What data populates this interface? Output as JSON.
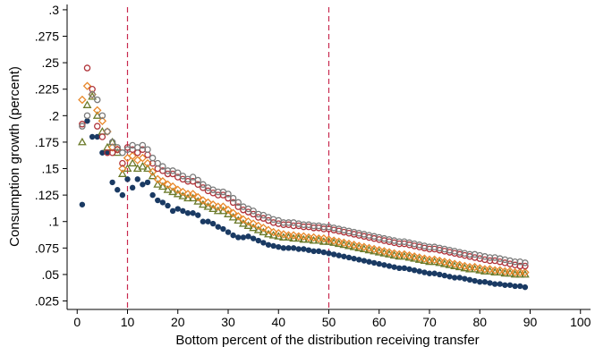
{
  "chart_data": {
    "type": "scatter",
    "title": "",
    "xlabel": "Bottom percent of the distribution receiving transfer",
    "ylabel": "Consumption growth (percent)",
    "xlim": [
      -2,
      102
    ],
    "ylim": [
      0.017,
      0.305
    ],
    "x_ticks": [
      0,
      10,
      20,
      30,
      40,
      50,
      60,
      70,
      80,
      90,
      100
    ],
    "y_ticks": [
      0.025,
      0.05,
      0.075,
      0.1,
      0.125,
      0.15,
      0.175,
      0.2,
      0.225,
      0.25,
      0.275,
      0.3
    ],
    "x_tick_labels": [
      "0",
      "10",
      "20",
      "30",
      "40",
      "50",
      "60",
      "70",
      "80",
      "90",
      "100"
    ],
    "y_tick_labels": [
      ".025",
      ".05",
      ".075",
      ".1",
      ".125",
      ".15",
      ".175",
      ".2",
      ".225",
      ".25",
      ".275",
      ".3"
    ],
    "reference_lines": [
      {
        "axis": "x",
        "value": 10,
        "color": "#c8294f",
        "style": "dashed"
      },
      {
        "axis": "x",
        "value": 50,
        "color": "#c8294f",
        "style": "dashed"
      }
    ],
    "grid": false,
    "legend": "none",
    "x": [
      1,
      2,
      3,
      4,
      5,
      6,
      7,
      8,
      9,
      10,
      11,
      12,
      13,
      14,
      15,
      16,
      17,
      18,
      19,
      20,
      21,
      22,
      23,
      24,
      25,
      26,
      27,
      28,
      29,
      30,
      31,
      32,
      33,
      34,
      35,
      36,
      37,
      38,
      39,
      40,
      41,
      42,
      43,
      44,
      45,
      46,
      47,
      48,
      49,
      50,
      51,
      52,
      53,
      54,
      55,
      56,
      57,
      58,
      59,
      60,
      61,
      62,
      63,
      64,
      65,
      66,
      67,
      68,
      69,
      70,
      71,
      72,
      73,
      74,
      75,
      76,
      77,
      78,
      79,
      80,
      81,
      82,
      83,
      84,
      85,
      86,
      87,
      88,
      89
    ],
    "series": [
      {
        "marker": "hollow-circle",
        "color": "#7a7a7a",
        "values": [
          0.19,
          0.2,
          0.22,
          0.215,
          0.2,
          0.185,
          0.175,
          0.17,
          0.165,
          0.168,
          0.172,
          0.17,
          0.172,
          0.168,
          0.16,
          0.155,
          0.152,
          0.148,
          0.148,
          0.146,
          0.143,
          0.14,
          0.142,
          0.139,
          0.135,
          0.132,
          0.13,
          0.128,
          0.128,
          0.126,
          0.122,
          0.118,
          0.114,
          0.112,
          0.11,
          0.107,
          0.106,
          0.104,
          0.102,
          0.101,
          0.099,
          0.099,
          0.099,
          0.098,
          0.097,
          0.097,
          0.096,
          0.096,
          0.095,
          0.095,
          0.094,
          0.093,
          0.092,
          0.091,
          0.09,
          0.089,
          0.088,
          0.087,
          0.086,
          0.085,
          0.084,
          0.083,
          0.082,
          0.081,
          0.081,
          0.08,
          0.079,
          0.078,
          0.077,
          0.076,
          0.076,
          0.075,
          0.074,
          0.073,
          0.072,
          0.071,
          0.07,
          0.069,
          0.069,
          0.068,
          0.067,
          0.066,
          0.066,
          0.065,
          0.064,
          0.063,
          0.062,
          0.062,
          0.061
        ]
      },
      {
        "marker": "hollow-circle",
        "color": "#b0343a",
        "values": [
          0.192,
          0.245,
          0.225,
          0.19,
          0.18,
          0.165,
          0.165,
          0.168,
          0.155,
          0.17,
          0.168,
          0.165,
          0.168,
          0.163,
          0.155,
          0.15,
          0.148,
          0.145,
          0.145,
          0.142,
          0.14,
          0.138,
          0.138,
          0.135,
          0.132,
          0.129,
          0.127,
          0.125,
          0.125,
          0.122,
          0.118,
          0.114,
          0.111,
          0.109,
          0.107,
          0.104,
          0.103,
          0.101,
          0.099,
          0.098,
          0.097,
          0.097,
          0.096,
          0.096,
          0.095,
          0.095,
          0.094,
          0.094,
          0.093,
          0.093,
          0.092,
          0.091,
          0.09,
          0.089,
          0.088,
          0.087,
          0.086,
          0.085,
          0.084,
          0.083,
          0.082,
          0.081,
          0.08,
          0.079,
          0.079,
          0.078,
          0.077,
          0.076,
          0.075,
          0.074,
          0.074,
          0.073,
          0.072,
          0.071,
          0.07,
          0.069,
          0.068,
          0.067,
          0.066,
          0.065,
          0.064,
          0.063,
          0.063,
          0.062,
          0.061,
          0.06,
          0.059,
          0.058,
          0.058
        ]
      },
      {
        "marker": "hollow-diamond",
        "color": "#e8882a",
        "values": [
          0.215,
          0.228,
          0.22,
          0.205,
          0.195,
          0.185,
          0.17,
          0.168,
          0.15,
          0.16,
          0.162,
          0.158,
          0.16,
          0.155,
          0.147,
          0.14,
          0.138,
          0.135,
          0.133,
          0.13,
          0.128,
          0.126,
          0.126,
          0.123,
          0.12,
          0.118,
          0.116,
          0.114,
          0.114,
          0.111,
          0.108,
          0.105,
          0.102,
          0.1,
          0.098,
          0.096,
          0.094,
          0.092,
          0.09,
          0.089,
          0.088,
          0.087,
          0.087,
          0.086,
          0.086,
          0.085,
          0.085,
          0.084,
          0.084,
          0.083,
          0.082,
          0.081,
          0.08,
          0.079,
          0.078,
          0.077,
          0.076,
          0.075,
          0.074,
          0.073,
          0.072,
          0.071,
          0.07,
          0.069,
          0.069,
          0.068,
          0.067,
          0.066,
          0.065,
          0.064,
          0.064,
          0.063,
          0.062,
          0.061,
          0.06,
          0.059,
          0.058,
          0.057,
          0.057,
          0.056,
          0.055,
          0.055,
          0.054,
          0.054,
          0.053,
          0.053,
          0.052,
          0.052,
          0.052
        ]
      },
      {
        "marker": "hollow-triangle",
        "color": "#6b7a2a",
        "values": [
          0.175,
          0.21,
          0.218,
          0.2,
          0.185,
          0.17,
          0.175,
          0.165,
          0.145,
          0.15,
          0.155,
          0.15,
          0.152,
          0.15,
          0.143,
          0.135,
          0.133,
          0.13,
          0.128,
          0.126,
          0.124,
          0.122,
          0.122,
          0.119,
          0.116,
          0.114,
          0.112,
          0.11,
          0.11,
          0.107,
          0.104,
          0.101,
          0.098,
          0.096,
          0.094,
          0.092,
          0.09,
          0.088,
          0.087,
          0.086,
          0.085,
          0.085,
          0.084,
          0.084,
          0.083,
          0.083,
          0.082,
          0.082,
          0.081,
          0.081,
          0.08,
          0.079,
          0.078,
          0.077,
          0.076,
          0.075,
          0.074,
          0.073,
          0.072,
          0.071,
          0.07,
          0.069,
          0.068,
          0.067,
          0.067,
          0.066,
          0.065,
          0.064,
          0.063,
          0.062,
          0.062,
          0.061,
          0.06,
          0.059,
          0.058,
          0.057,
          0.056,
          0.055,
          0.055,
          0.054,
          0.053,
          0.053,
          0.052,
          0.052,
          0.051,
          0.051,
          0.05,
          0.05,
          0.05
        ]
      },
      {
        "marker": "solid-circle",
        "color": "#1a3a63",
        "values": [
          0.116,
          0.195,
          0.18,
          0.18,
          0.165,
          0.165,
          0.137,
          0.13,
          0.125,
          0.14,
          0.132,
          0.14,
          0.135,
          0.137,
          0.125,
          0.12,
          0.118,
          0.115,
          0.11,
          0.112,
          0.11,
          0.108,
          0.108,
          0.106,
          0.1,
          0.1,
          0.098,
          0.095,
          0.093,
          0.09,
          0.087,
          0.085,
          0.085,
          0.086,
          0.084,
          0.082,
          0.08,
          0.078,
          0.077,
          0.076,
          0.075,
          0.075,
          0.075,
          0.074,
          0.074,
          0.073,
          0.072,
          0.072,
          0.071,
          0.07,
          0.069,
          0.068,
          0.067,
          0.066,
          0.065,
          0.064,
          0.063,
          0.062,
          0.061,
          0.06,
          0.059,
          0.058,
          0.057,
          0.056,
          0.056,
          0.055,
          0.054,
          0.053,
          0.052,
          0.051,
          0.051,
          0.05,
          0.049,
          0.048,
          0.047,
          0.047,
          0.046,
          0.045,
          0.044,
          0.043,
          0.043,
          0.042,
          0.041,
          0.041,
          0.04,
          0.04,
          0.039,
          0.039,
          0.038
        ]
      }
    ]
  }
}
